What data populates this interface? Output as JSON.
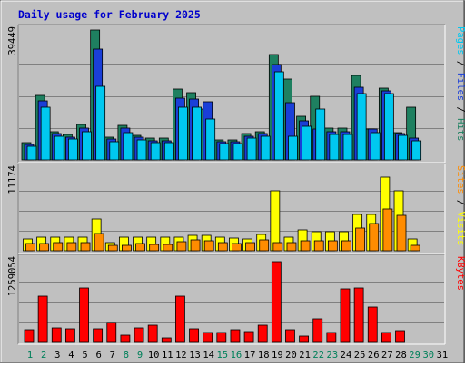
{
  "chart_data": {
    "type": "bar",
    "title": "Daily usage for February 2025",
    "days": [
      "1",
      "2",
      "3",
      "4",
      "5",
      "6",
      "7",
      "8",
      "9",
      "10",
      "11",
      "12",
      "13",
      "14",
      "15",
      "16",
      "17",
      "18",
      "19",
      "20",
      "21",
      "22",
      "23",
      "24",
      "25",
      "26",
      "27",
      "28",
      "29",
      "30",
      "31"
    ],
    "weekend_days": [
      "1",
      "2",
      "8",
      "9",
      "15",
      "16",
      "22",
      "23",
      "29",
      "30"
    ],
    "panels": [
      {
        "id": "pages-files-hits",
        "axis_max_label": "39449",
        "ylim": [
          0,
          39449
        ],
        "right_label": [
          {
            "text": "Pages",
            "color": "#00c8f0"
          },
          {
            "text": " / ",
            "color": "#000000"
          },
          {
            "text": "Files",
            "color": "#1a3fd8"
          },
          {
            "text": " / ",
            "color": "#000000"
          },
          {
            "text": "Hits",
            "color": "#1e8060"
          }
        ],
        "series": [
          {
            "name": "Hits",
            "color": "#1e8060",
            "values": [
              5200,
              20000,
              8800,
              7700,
              11000,
              40000,
              7000,
              10500,
              7500,
              6600,
              6600,
              21800,
              20700,
              15700,
              6100,
              6100,
              8200,
              8800,
              32400,
              24800,
              13400,
              19700,
              9700,
              9700,
              26100,
              9400,
              22100,
              8500,
              16200,
              0,
              0
            ]
          },
          {
            "name": "Files",
            "color": "#1a3fd8",
            "values": [
              4800,
              18200,
              8000,
              7000,
              9900,
              34200,
              6400,
              9700,
              6900,
              6000,
              6000,
              19100,
              18700,
              17900,
              5500,
              5500,
              7400,
              8000,
              29400,
              17700,
              12000,
              9600,
              8800,
              8800,
              22500,
              9400,
              21400,
              8100,
              6700,
              0,
              0
            ]
          },
          {
            "name": "Pages",
            "color": "#00c8f0",
            "values": [
              4300,
              16100,
              7200,
              6300,
              8800,
              22800,
              5700,
              8500,
              6100,
              5400,
              5400,
              16100,
              16200,
              12700,
              4900,
              4900,
              6600,
              7200,
              27100,
              7200,
              10400,
              15600,
              7900,
              7900,
              20500,
              8400,
              20500,
              7600,
              6000,
              0,
              0
            ]
          }
        ]
      },
      {
        "id": "sites-visits",
        "axis_max_label": "11174",
        "ylim": [
          0,
          11174
        ],
        "right_label": [
          {
            "text": "Sites",
            "color": "#ff8c00"
          },
          {
            "text": " / ",
            "color": "#000000"
          },
          {
            "text": "Visits",
            "color": "#ffff00"
          }
        ],
        "series": [
          {
            "name": "Visits",
            "color": "#ffff00",
            "values": [
              1600,
              1900,
              1900,
              1900,
              1900,
              4500,
              1200,
              1900,
              1900,
              1900,
              1900,
              1900,
              2100,
              2100,
              1900,
              1800,
              1700,
              2300,
              8400,
              1900,
              2900,
              2700,
              2700,
              2700,
              5100,
              5100,
              10300,
              8400,
              1600,
              0,
              0
            ]
          },
          {
            "name": "Sites",
            "color": "#ff8c00",
            "values": [
              1000,
              1000,
              1100,
              1100,
              1200,
              2400,
              800,
              800,
              1000,
              900,
              900,
              1300,
              1500,
              1400,
              1100,
              1000,
              1100,
              1500,
              1200,
              1100,
              1400,
              1400,
              1400,
              1400,
              3200,
              3800,
              5900,
              4900,
              800,
              0,
              0
            ]
          }
        ]
      },
      {
        "id": "kbytes",
        "axis_max_label": "1259054",
        "ylim": [
          0,
          1259054
        ],
        "right_label": [
          {
            "text": "KBytes",
            "color": "#ff0000"
          }
        ],
        "series": [
          {
            "name": "KBytes",
            "color": "#ff0000",
            "values": [
              192000,
              722000,
              219000,
              204000,
              846000,
              206000,
              297000,
              103000,
              208000,
              255000,
              63000,
              716000,
              204000,
              139000,
              139000,
              180000,
              155000,
              255000,
              1259000,
              193000,
              86000,
              363000,
              139000,
              823000,
              846000,
              540000,
              139000,
              173000,
              0,
              0,
              0
            ]
          }
        ]
      }
    ]
  }
}
